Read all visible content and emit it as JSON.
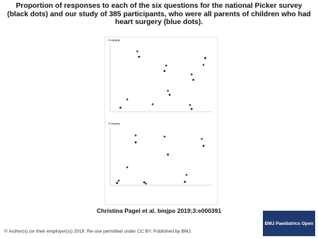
{
  "header": {
    "title": "Proportion of responses to each of the six questions for the national Picker survey (black dots) and our study of 385 participants, who were all parents of children who had heart surgery (blue dots)."
  },
  "chart_data": [
    {
      "type": "scatter",
      "y_label": "% replying",
      "xlim": [
        0,
        6
      ],
      "ylim": [
        0,
        100
      ],
      "series": [
        {
          "name": null,
          "color": "#000000",
          "x": [
            0.6,
            1.7,
            3.2,
            3.5,
            4.8,
            4.9,
            5.6
          ],
          "values": [
            6,
            81,
            60,
            25,
            4,
            47,
            79
          ]
        },
        {
          "name": null,
          "color": "#1f2aa8",
          "x": [
            1.0,
            1.6,
            2.5,
            3.3,
            3.4,
            4.7,
            4.8,
            5.5
          ],
          "values": [
            18,
            89,
            11,
            68,
            31,
            10,
            55,
            69
          ]
        }
      ]
    },
    {
      "type": "scatter",
      "y_label": "% replying",
      "xlim": [
        0,
        6
      ],
      "ylim": [
        0,
        100
      ],
      "series": [
        {
          "name": null,
          "color": "#000000",
          "x": [
            0.4,
            1.5,
            2.0,
            3.4,
            4.4,
            5.5
          ],
          "values": [
            4,
            74,
            5,
            53,
            6,
            68
          ]
        },
        {
          "name": null,
          "color": "#1f2aa8",
          "x": [
            0.5,
            1.0,
            1.5,
            2.1,
            3.2,
            4.5,
            5.4
          ],
          "values": [
            8,
            31,
            86,
            3,
            84,
            18,
            80
          ]
        }
      ]
    }
  ],
  "footer": {
    "citation": "Christina Pagel et al. bmjpo 2019;3:e000391",
    "copyright": "© Author(s) (or their employer(s)) 2019. Re-use permitted under CC BY. Published by BMJ.",
    "logo": "BMJ Paediatrics Open"
  }
}
